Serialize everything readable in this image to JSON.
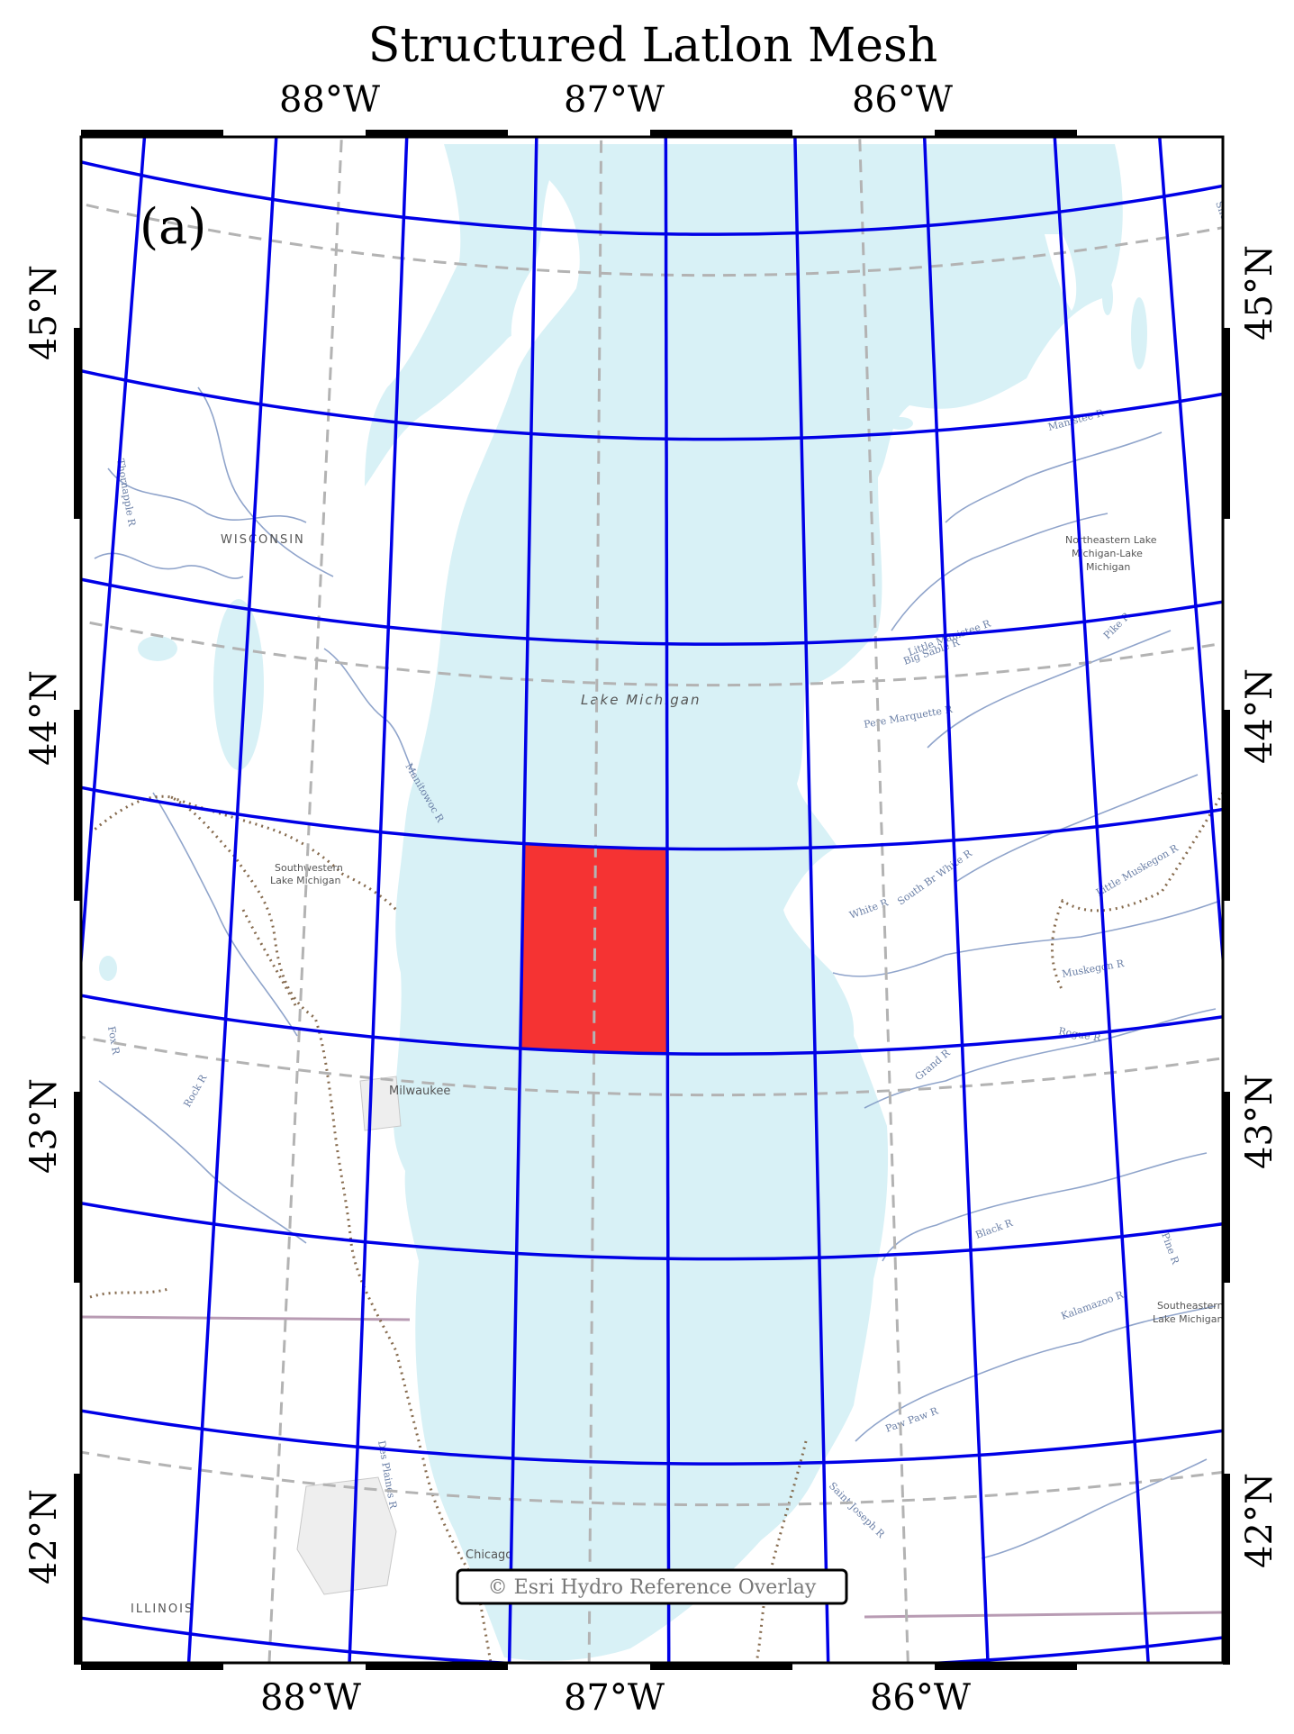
{
  "title": "Structured Latlon Mesh",
  "panel_label": "(a)",
  "attribution": "© Esri Hydro Reference Overlay",
  "axes": {
    "lon_range": [
      -88.85,
      -84.85
    ],
    "lat_range": [
      41.55,
      45.35
    ],
    "top_ticks": [
      "88°W",
      "87°W",
      "86°W"
    ],
    "bottom_ticks": [
      "88°W",
      "87°W",
      "86°W"
    ],
    "left_ticks": [
      "45°N",
      "44°N",
      "43°N",
      "42°N"
    ],
    "right_ticks": [
      "45°N",
      "44°N",
      "43°N",
      "42°N"
    ]
  },
  "basemap_labels": {
    "wisconsin": "WISCONSIN",
    "illinois": "ILLINOIS",
    "lake_michigan": "Lake Michigan",
    "milwaukee": "Milwaukee",
    "chicago": "Chicago",
    "sw_lake_michigan_1": "Southwestern",
    "sw_lake_michigan_2": "Lake Michigan",
    "ne_lake_michigan_1": "Northeastern Lake",
    "ne_lake_michigan_2": "Michigan-Lake",
    "ne_lake_michigan_3": "Michigan",
    "se_lake_michigan_1": "Southeastern",
    "se_lake_michigan_2": "Lake Michigan",
    "rivers": [
      "Manistee R",
      "Little Manistee R",
      "Big Sable R",
      "Pere Marquette R",
      "White R",
      "South Br White R",
      "Little Muskegon R",
      "Muskegon R",
      "Rogue R",
      "Grand R",
      "Kalamazoo R",
      "Black R",
      "Paw Paw R",
      "Saint Joseph R",
      "Des Plaines R",
      "Fox R",
      "Rock R",
      "Pike R",
      "Pine R",
      "Sheboygan R",
      "Manitowoc R",
      "Thornapple R"
    ]
  },
  "colors": {
    "lake": "#d8f1f6",
    "land": "#ffffff",
    "mesh_line": "#0000e6",
    "highlight_cell": "#f53333",
    "graticule": "#b3b3b3",
    "frame": "#000000"
  },
  "chart_data": {
    "type": "map",
    "projection": "Lambert conformal (curved graticule)",
    "mesh": {
      "kind": "structured lat-lon",
      "lon_edges": [
        -88.75,
        -88.25,
        -87.75,
        -87.25,
        -86.75,
        -86.25,
        -85.75,
        -85.25,
        -84.85
      ],
      "lat_edges": [
        41.6,
        42.1,
        42.6,
        43.1,
        43.6,
        44.1,
        44.6,
        45.1
      ],
      "line_color": "#0000e6"
    },
    "highlighted_cell": {
      "lon": [
        -87.25,
        -86.75
      ],
      "lat": [
        43.1,
        43.6
      ],
      "color": "#f53333"
    },
    "graticule": {
      "lon": [
        -88,
        -87,
        -86
      ],
      "lat": [
        42,
        43,
        44,
        45
      ],
      "style": "dashed gray"
    }
  }
}
